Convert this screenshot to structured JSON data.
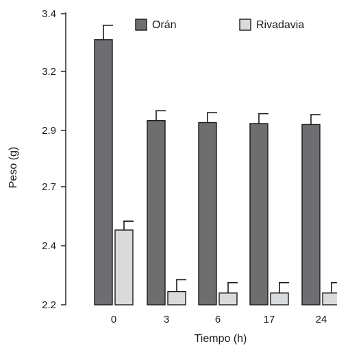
{
  "chart_data": {
    "type": "bar",
    "categories": [
      "0",
      "3",
      "6",
      "17",
      "24"
    ],
    "series": [
      {
        "name": "Orán",
        "color": "#6e6e70",
        "values": [
          3.31,
          2.95,
          2.94,
          2.935,
          2.93
        ],
        "error": [
          0.05,
          0.05,
          0.05,
          0.05,
          0.05
        ]
      },
      {
        "name": "Rivadavia",
        "color": "#d9dadb",
        "values": [
          2.48,
          2.245,
          2.24,
          2.24,
          2.24
        ],
        "error": [
          0.045,
          0.04,
          0.035,
          0.035,
          0.035
        ]
      }
    ],
    "xlabel": "Tiempo (h)",
    "ylabel": "Peso (g)",
    "yticks": [
      2.2,
      2.4,
      2.7,
      2.9,
      3.2,
      3.4
    ],
    "ylim": [
      2.2,
      3.4
    ],
    "grid": false,
    "legend_position": "top"
  }
}
